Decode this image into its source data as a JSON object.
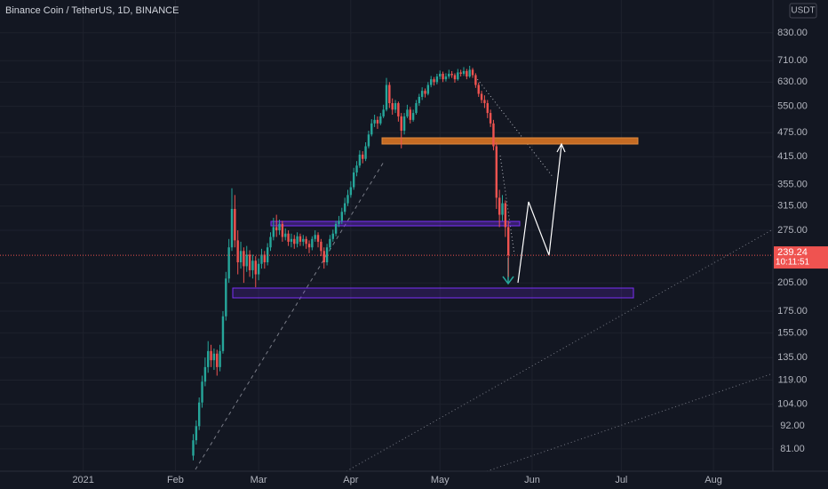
{
  "chart_data": {
    "type": "candlestick",
    "title": "Binance Coin / TetherUS, 1D, BINANCE",
    "currency": "USDT",
    "log_scale": true,
    "grid": true,
    "up_color": "#26a69a",
    "down_color": "#ef5350",
    "last_price": {
      "value": 239.24,
      "label": "239.24"
    },
    "countdown": "10:11:51",
    "xlim": [
      -28,
      232
    ],
    "xticks": [
      {
        "value": 0,
        "label": "2021"
      },
      {
        "value": 31,
        "label": "Feb"
      },
      {
        "value": 59,
        "label": "Mar"
      },
      {
        "value": 90,
        "label": "Apr"
      },
      {
        "value": 120,
        "label": "May"
      },
      {
        "value": 151,
        "label": "Jun"
      },
      {
        "value": 181,
        "label": "Jul"
      },
      {
        "value": 212,
        "label": "Aug"
      }
    ],
    "ylim": [
      71.5,
      997
    ],
    "yticks": [
      {
        "value": 81,
        "label": "81.00"
      },
      {
        "value": 92,
        "label": "92.00"
      },
      {
        "value": 104,
        "label": "104.00"
      },
      {
        "value": 119,
        "label": "119.00"
      },
      {
        "value": 135,
        "label": "135.00"
      },
      {
        "value": 155,
        "label": "155.00"
      },
      {
        "value": 175,
        "label": "175.00"
      },
      {
        "value": 205,
        "label": "205.00"
      },
      {
        "value": 275,
        "label": "275.00"
      },
      {
        "value": 315,
        "label": "315.00"
      },
      {
        "value": 355,
        "label": "355.00"
      },
      {
        "value": 415,
        "label": "415.00"
      },
      {
        "value": 475,
        "label": "475.00"
      },
      {
        "value": 550,
        "label": "550.00"
      },
      {
        "value": 630,
        "label": "630.00"
      },
      {
        "value": 710,
        "label": "710.00"
      },
      {
        "value": 830,
        "label": "830.00"
      }
    ],
    "x": [
      37,
      38,
      39,
      40,
      41,
      42,
      43,
      44,
      45,
      46,
      47,
      48,
      49,
      50,
      51,
      52,
      53,
      54,
      55,
      56,
      57,
      58,
      59,
      60,
      61,
      62,
      63,
      64,
      65,
      66,
      67,
      68,
      69,
      70,
      71,
      72,
      73,
      74,
      75,
      76,
      77,
      78,
      79,
      80,
      81,
      82,
      83,
      84,
      85,
      86,
      87,
      88,
      89,
      90,
      91,
      92,
      93,
      94,
      95,
      96,
      97,
      98,
      99,
      100,
      101,
      102,
      103,
      104,
      105,
      106,
      107,
      108,
      109,
      110,
      111,
      112,
      113,
      114,
      115,
      116,
      117,
      118,
      119,
      120,
      121,
      122,
      123,
      124,
      125,
      126,
      127,
      128,
      129,
      130,
      131,
      132,
      133,
      134,
      135,
      136,
      137,
      138,
      139,
      140,
      141,
      142,
      143
    ],
    "candles": [
      [
        78,
        88,
        76,
        85
      ],
      [
        85,
        95,
        83,
        92
      ],
      [
        92,
        108,
        90,
        105
      ],
      [
        105,
        122,
        102,
        118
      ],
      [
        118,
        135,
        115,
        128
      ],
      [
        128,
        148,
        124,
        140
      ],
      [
        140,
        145,
        128,
        133
      ],
      [
        133,
        142,
        126,
        138
      ],
      [
        138,
        141,
        122,
        128
      ],
      [
        128,
        145,
        125,
        140
      ],
      [
        140,
        175,
        138,
        170
      ],
      [
        170,
        218,
        166,
        210
      ],
      [
        210,
        262,
        205,
        250
      ],
      [
        250,
        348,
        245,
        310
      ],
      [
        310,
        335,
        250,
        260
      ],
      [
        260,
        275,
        215,
        230
      ],
      [
        230,
        258,
        222,
        245
      ],
      [
        245,
        250,
        205,
        225
      ],
      [
        225,
        252,
        218,
        240
      ],
      [
        240,
        246,
        212,
        220
      ],
      [
        220,
        240,
        210,
        232
      ],
      [
        232,
        238,
        200,
        215
      ],
      [
        215,
        235,
        208,
        228
      ],
      [
        228,
        248,
        222,
        240
      ],
      [
        240,
        245,
        222,
        230
      ],
      [
        230,
        256,
        226,
        250
      ],
      [
        250,
        272,
        245,
        265
      ],
      [
        265,
        295,
        260,
        280
      ],
      [
        280,
        300,
        265,
        275
      ],
      [
        275,
        292,
        268,
        285
      ],
      [
        285,
        290,
        258,
        265
      ],
      [
        265,
        278,
        260,
        270
      ],
      [
        270,
        275,
        252,
        258
      ],
      [
        258,
        270,
        250,
        262
      ],
      [
        262,
        268,
        248,
        255
      ],
      [
        255,
        272,
        250,
        266
      ],
      [
        266,
        270,
        252,
        258
      ],
      [
        258,
        268,
        252,
        262
      ],
      [
        262,
        266,
        248,
        255
      ],
      [
        255,
        260,
        242,
        250
      ],
      [
        250,
        266,
        246,
        262
      ],
      [
        262,
        275,
        258,
        268
      ],
      [
        268,
        272,
        250,
        258
      ],
      [
        258,
        262,
        238,
        245
      ],
      [
        245,
        250,
        222,
        230
      ],
      [
        230,
        255,
        226,
        250
      ],
      [
        250,
        268,
        246,
        262
      ],
      [
        262,
        276,
        258,
        270
      ],
      [
        270,
        290,
        266,
        285
      ],
      [
        285,
        298,
        280,
        290
      ],
      [
        290,
        312,
        285,
        305
      ],
      [
        305,
        330,
        300,
        320
      ],
      [
        320,
        345,
        315,
        335
      ],
      [
        335,
        362,
        330,
        350
      ],
      [
        350,
        390,
        345,
        380
      ],
      [
        380,
        405,
        372,
        395
      ],
      [
        395,
        430,
        390,
        420
      ],
      [
        420,
        428,
        400,
        410
      ],
      [
        410,
        450,
        405,
        440
      ],
      [
        440,
        480,
        435,
        470
      ],
      [
        470,
        512,
        465,
        500
      ],
      [
        500,
        525,
        490,
        510
      ],
      [
        510,
        520,
        485,
        500
      ],
      [
        500,
        530,
        495,
        520
      ],
      [
        520,
        555,
        515,
        540
      ],
      [
        540,
        645,
        535,
        620
      ],
      [
        620,
        630,
        545,
        560
      ],
      [
        560,
        575,
        525,
        540
      ],
      [
        540,
        570,
        530,
        560
      ],
      [
        560,
        565,
        505,
        520
      ],
      [
        520,
        530,
        435,
        480
      ],
      [
        480,
        530,
        470,
        520
      ],
      [
        520,
        555,
        515,
        540
      ],
      [
        540,
        548,
        500,
        510
      ],
      [
        510,
        540,
        505,
        530
      ],
      [
        530,
        570,
        525,
        560
      ],
      [
        560,
        590,
        552,
        580
      ],
      [
        580,
        612,
        570,
        600
      ],
      [
        600,
        608,
        578,
        590
      ],
      [
        590,
        630,
        585,
        620
      ],
      [
        620,
        652,
        612,
        640
      ],
      [
        640,
        648,
        618,
        630
      ],
      [
        630,
        660,
        622,
        650
      ],
      [
        650,
        672,
        640,
        660
      ],
      [
        660,
        668,
        630,
        640
      ],
      [
        640,
        662,
        632,
        650
      ],
      [
        650,
        675,
        642,
        660
      ],
      [
        660,
        670,
        645,
        655
      ],
      [
        655,
        662,
        628,
        640
      ],
      [
        640,
        678,
        635,
        665
      ],
      [
        665,
        675,
        650,
        660
      ],
      [
        660,
        685,
        652,
        670
      ],
      [
        670,
        678,
        640,
        650
      ],
      [
        650,
        690,
        645,
        675
      ],
      [
        675,
        682,
        645,
        655
      ],
      [
        655,
        662,
        610,
        620
      ],
      [
        620,
        628,
        580,
        590
      ],
      [
        590,
        600,
        560,
        570
      ],
      [
        570,
        585,
        545,
        560
      ],
      [
        560,
        570,
        515,
        530
      ],
      [
        530,
        540,
        490,
        500
      ],
      [
        500,
        510,
        430,
        440
      ],
      [
        440,
        450,
        310,
        330
      ],
      [
        330,
        345,
        280,
        300
      ],
      [
        300,
        335,
        290,
        320
      ],
      [
        320,
        325,
        265,
        280
      ],
      [
        280,
        290,
        212,
        239.24
      ]
    ]
  }
}
